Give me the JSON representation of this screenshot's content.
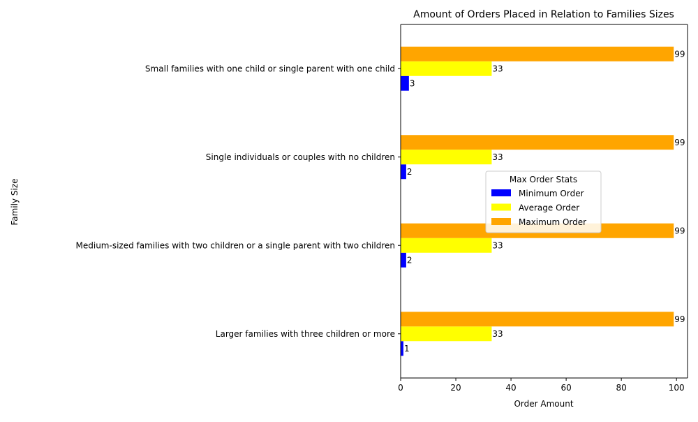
{
  "chart_data": {
    "type": "bar",
    "orientation": "horizontal",
    "title": "Amount of Orders Placed in Relation to Families Sizes",
    "xlabel": "Order Amount",
    "ylabel": "Family Size",
    "xlim": [
      0,
      104
    ],
    "xticks": [
      0,
      20,
      40,
      60,
      80,
      100
    ],
    "grid": false,
    "categories": [
      "Larger families with three children or more",
      "Medium-sized families with two children or a single parent with two children",
      "Single individuals or couples with no children",
      "Small families with one child or single parent with one child"
    ],
    "series": [
      {
        "name": "Minimum Order",
        "color": "#0000ff",
        "values": [
          1,
          2,
          2,
          3
        ]
      },
      {
        "name": "Average Order",
        "color": "#ffff00",
        "values": [
          33,
          33,
          33,
          33
        ]
      },
      {
        "name": "Maximum Order",
        "color": "#ffa500",
        "values": [
          99,
          99,
          99,
          99
        ]
      }
    ],
    "legend": {
      "title": "Max Order Stats",
      "placement": "center-right"
    }
  }
}
